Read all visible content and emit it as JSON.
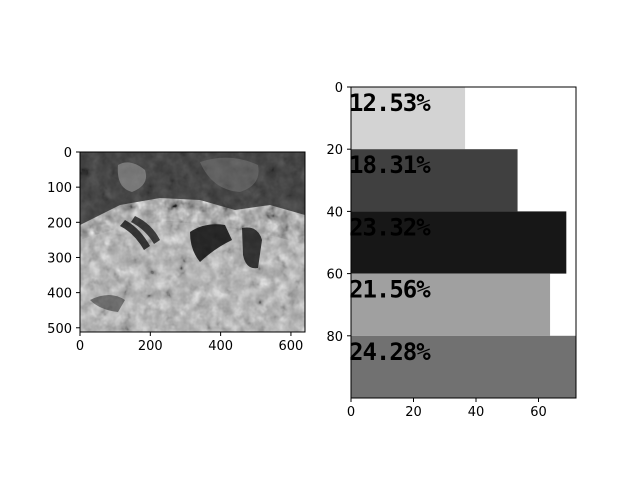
{
  "figure": {
    "image_panel": {
      "xticks": [
        0,
        200,
        400,
        600
      ],
      "yticks": [
        0,
        100,
        200,
        300,
        400,
        500
      ],
      "xlim": [
        0,
        640
      ],
      "ylim": [
        512,
        0
      ]
    }
  },
  "chart_data": {
    "type": "bar",
    "orientation": "horizontal",
    "title": "",
    "xlabel": "",
    "ylabel": "",
    "xlim": [
      0,
      72
    ],
    "ylim": [
      100,
      0
    ],
    "xticks": [
      0,
      20,
      40,
      60
    ],
    "yticks": [
      0,
      20,
      40,
      60,
      80
    ],
    "grid": false,
    "legend": "none",
    "bars": [
      {
        "label": "12.53%",
        "value": 36.5,
        "y_start": 0,
        "y_end": 20,
        "color": "#d3d3d3"
      },
      {
        "label": "18.31%",
        "value": 53.3,
        "y_start": 20,
        "y_end": 40,
        "color": "#404040"
      },
      {
        "label": "23.32%",
        "value": 68.9,
        "y_start": 40,
        "y_end": 60,
        "color": "#171717"
      },
      {
        "label": "21.56%",
        "value": 63.7,
        "y_start": 60,
        "y_end": 80,
        "color": "#a0a0a0"
      },
      {
        "label": "24.28%",
        "value": 72,
        "y_start": 80,
        "y_end": 100,
        "color": "#717171"
      }
    ]
  }
}
